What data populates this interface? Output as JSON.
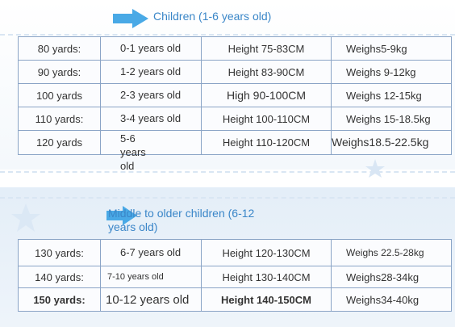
{
  "sections": [
    {
      "title": "Children (1-6 years old)",
      "rows": [
        {
          "size": "80 yards:",
          "age": "0-1 years old",
          "height": "Height 75-83CM",
          "weight": "Weighs5-9kg"
        },
        {
          "size": "90 yards:",
          "age": "1-2 years old",
          "height": "Height 83-90CM",
          "weight": "Weighs 9-12kg"
        },
        {
          "size": "100 yards",
          "age": "2-3 years old",
          "height": "High 90-100CM",
          "weight": "Weighs 12-15kg"
        },
        {
          "size": "110 yards:",
          "age": "3-4 years old",
          "height": "Height 100-110CM",
          "weight": "Weighs 15-18.5kg"
        },
        {
          "size": "120 yards",
          "age": "5-6 years old",
          "height": "Height 110-120CM",
          "weight": "Weighs18.5-22.5kg"
        }
      ]
    },
    {
      "title": "Middle to older children (6-12 years old)",
      "rows": [
        {
          "size": "130 yards:",
          "age": "6-7 years old",
          "height": "Height 120-130CM",
          "weight": "Weighs 22.5-28kg"
        },
        {
          "size": "140 yards:",
          "age": "7-10 years old",
          "height": "Height 130-140CM",
          "weight": "Weighs28-34kg"
        },
        {
          "size": "150 yards:",
          "age": "10-12 years old",
          "height": "Height 140-150CM",
          "weight": "Weighs34-40kg"
        }
      ]
    }
  ],
  "colors": {
    "accent": "#3a86c8",
    "border": "#8aa4c6",
    "arrow": "#49a9e6"
  }
}
